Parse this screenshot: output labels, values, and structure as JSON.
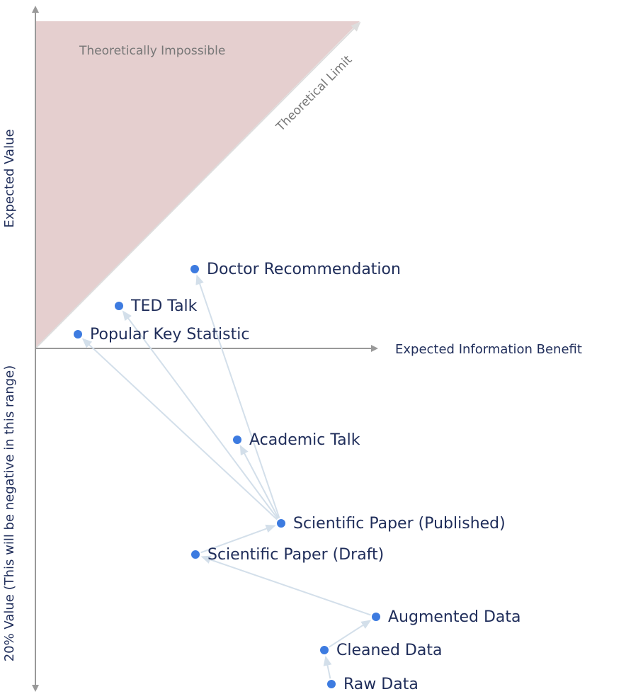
{
  "colors": {
    "region": "#e5cfcf",
    "axis": "#999999",
    "node": "#3d7be0",
    "edge": "#d3dfea",
    "text": "#1f2d5a",
    "limit_arrow": "#dddddd"
  },
  "region_label": "Theoretically Impossible",
  "limit_label": "Theoretical Limit",
  "x_axis_label": "Expected Information Benefit",
  "y_axis_label_upper": "Expected Value",
  "y_axis_label_lower": "20% Value (This will be negative in this range)",
  "nodes": [
    {
      "label": "Doctor Recommendation"
    },
    {
      "label": "TED Talk"
    },
    {
      "label": "Popular Key Statistic"
    },
    {
      "label": "Academic Talk"
    },
    {
      "label": "Scientific Paper (Published)"
    },
    {
      "label": "Scientific Paper (Draft)"
    },
    {
      "label": "Augmented Data"
    },
    {
      "label": "Cleaned Data"
    },
    {
      "label": "Raw Data"
    }
  ],
  "edges": [
    {
      "from": "Raw Data",
      "to": "Cleaned Data"
    },
    {
      "from": "Cleaned Data",
      "to": "Augmented Data"
    },
    {
      "from": "Augmented Data",
      "to": "Scientific Paper (Draft)"
    },
    {
      "from": "Scientific Paper (Draft)",
      "to": "Scientific Paper (Published)"
    },
    {
      "from": "Scientific Paper (Published)",
      "to": "Academic Talk"
    },
    {
      "from": "Scientific Paper (Published)",
      "to": "Doctor Recommendation"
    },
    {
      "from": "Scientific Paper (Published)",
      "to": "TED Talk"
    },
    {
      "from": "Scientific Paper (Published)",
      "to": "Popular Key Statistic"
    }
  ]
}
